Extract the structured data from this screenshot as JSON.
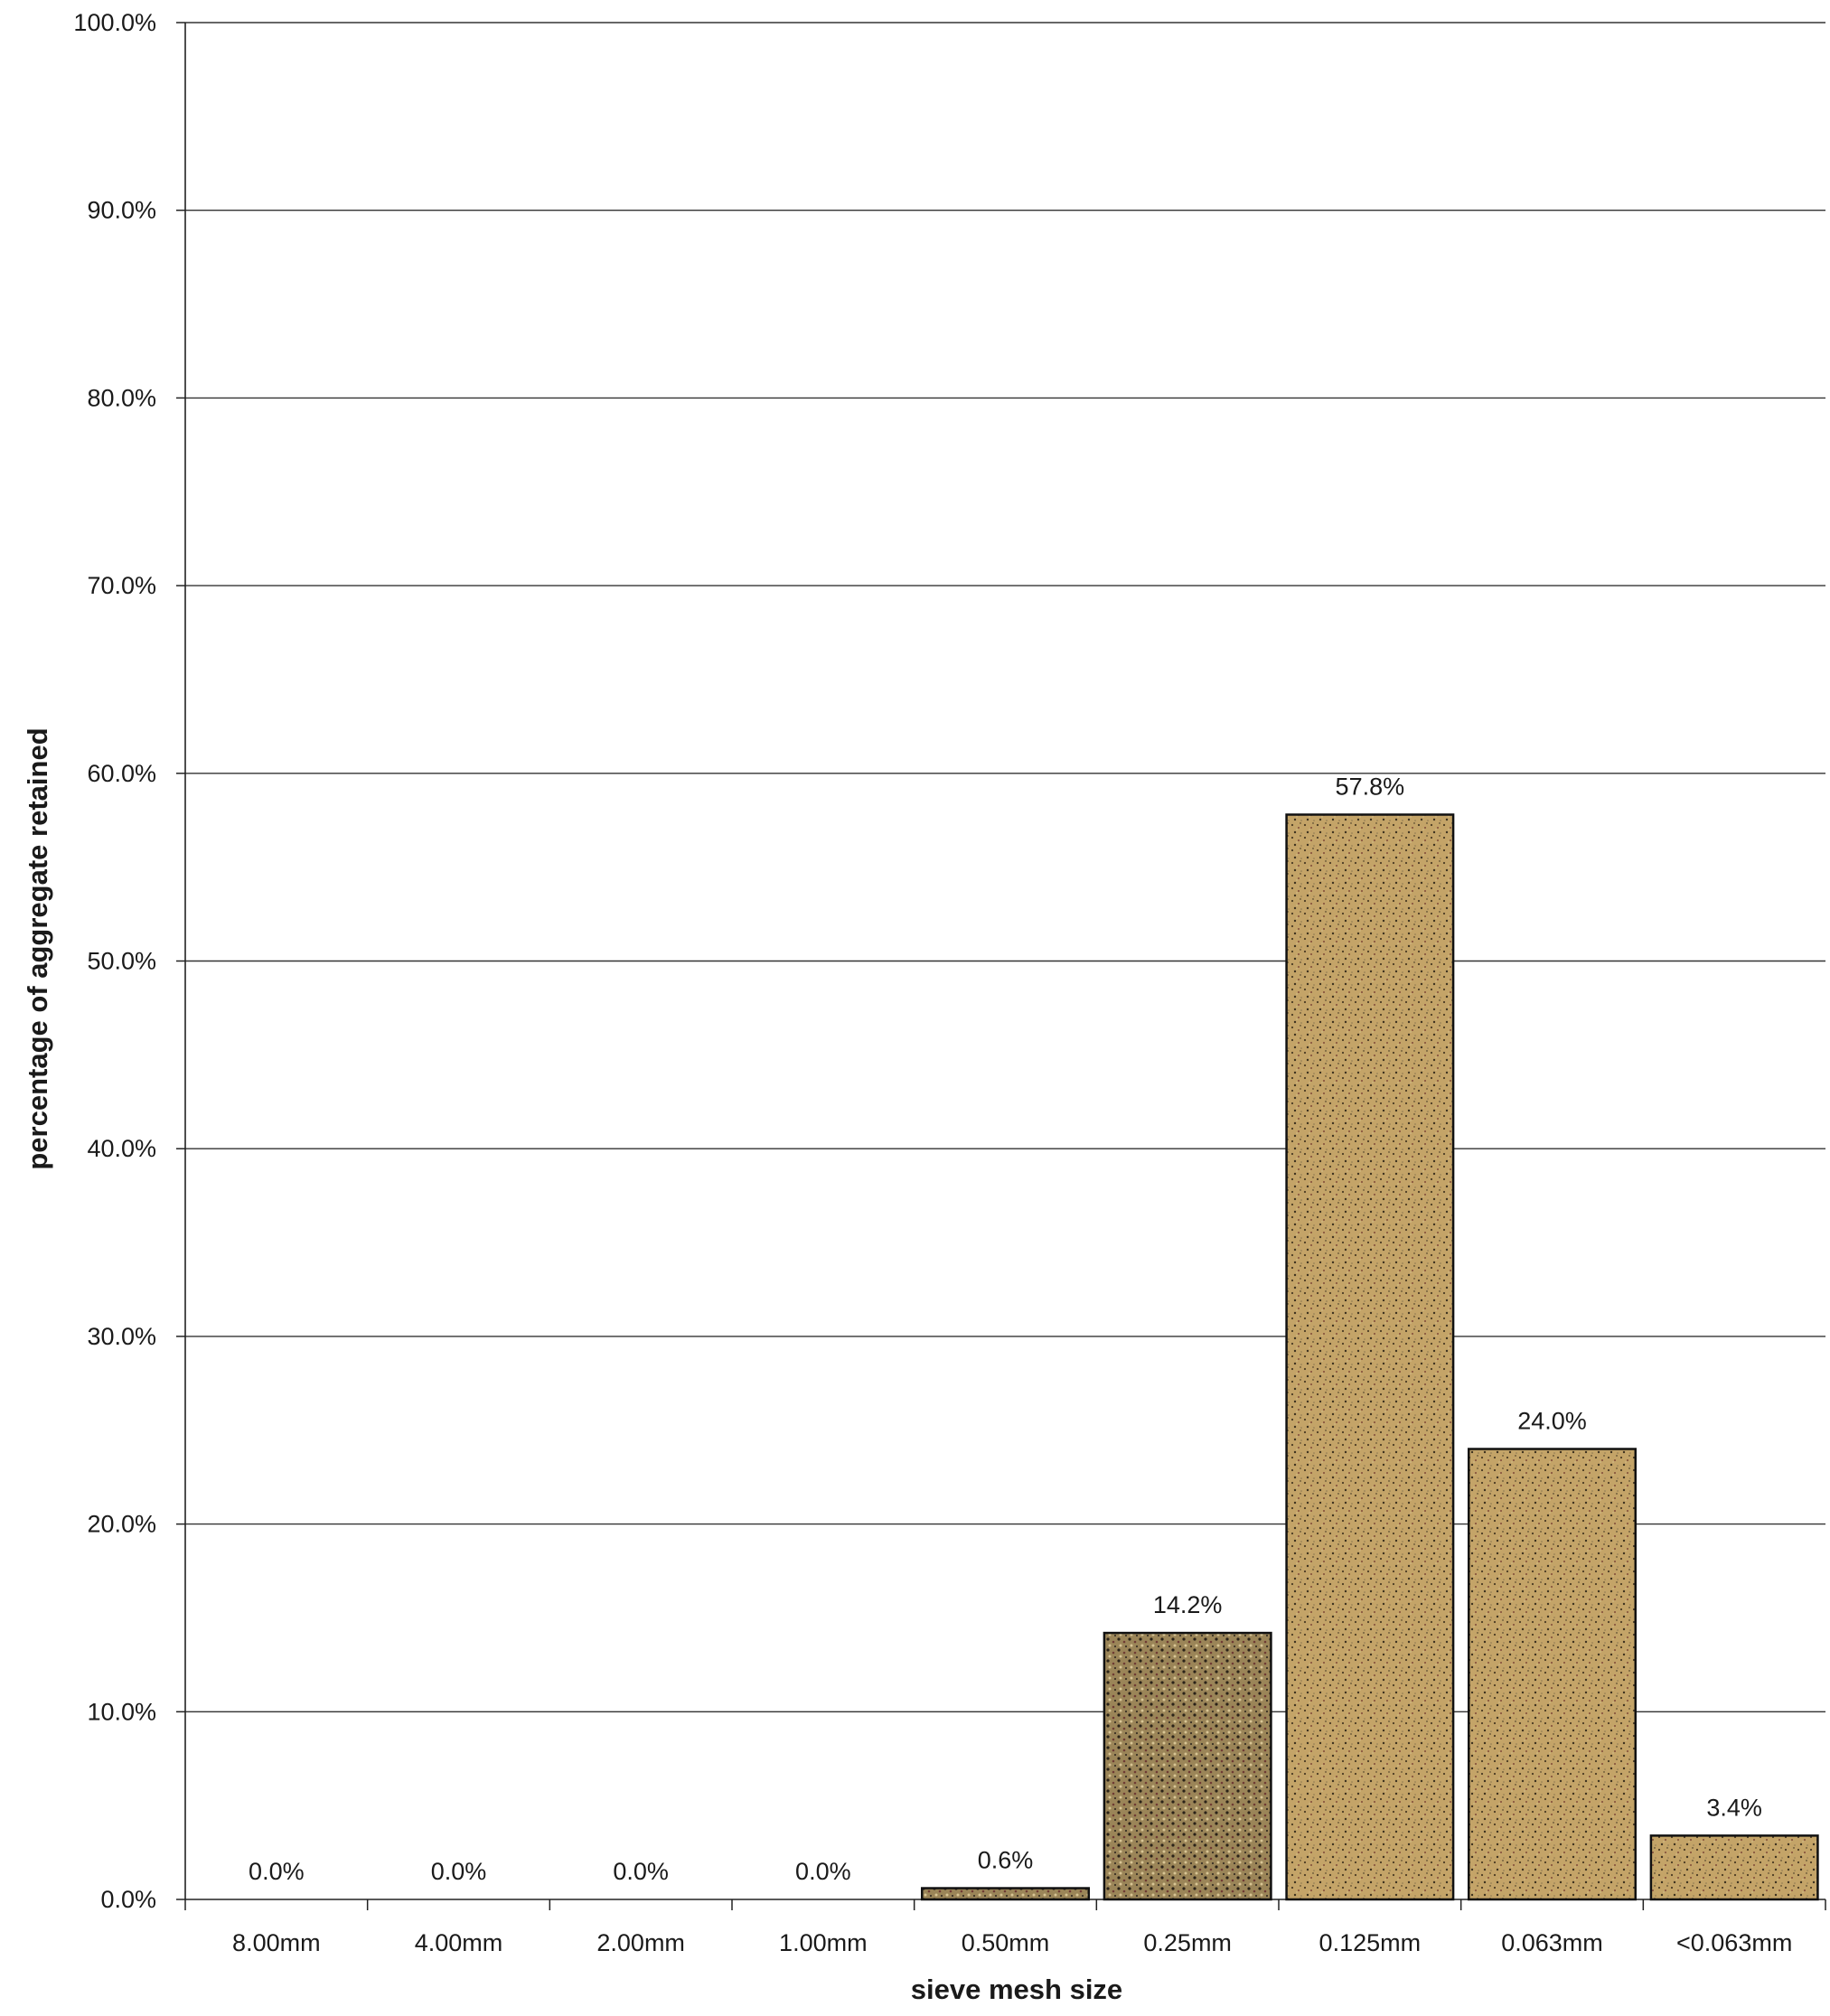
{
  "chart_data": {
    "type": "bar",
    "title": "",
    "xlabel": "sieve mesh size",
    "ylabel": "percentage of aggregate retained",
    "categories": [
      "8.00mm",
      "4.00mm",
      "2.00mm",
      "1.00mm",
      "0.50mm",
      "0.25mm",
      "0.125mm",
      "0.063mm",
      "<0.063mm"
    ],
    "values": [
      0.0,
      0.0,
      0.0,
      0.0,
      0.6,
      14.2,
      57.8,
      24.0,
      3.4
    ],
    "data_labels": [
      "0.0%",
      "0.0%",
      "0.0%",
      "0.0%",
      "0.6%",
      "14.2%",
      "57.8%",
      "24.0%",
      "3.4%"
    ],
    "ylim": [
      0,
      100
    ],
    "yticks": [
      0,
      10,
      20,
      30,
      40,
      50,
      60,
      70,
      80,
      90,
      100
    ],
    "ytick_labels": [
      "0.0%",
      "10.0%",
      "20.0%",
      "30.0%",
      "40.0%",
      "50.0%",
      "60.0%",
      "70.0%",
      "80.0%",
      "90.0%",
      "100.0%"
    ],
    "grid": true,
    "legend": "none",
    "colors": {
      "bar_fill": "#c2a266",
      "bar_fill_dark": "#7d6a45",
      "bar_outline": "#111111",
      "grid": "#333333"
    }
  }
}
